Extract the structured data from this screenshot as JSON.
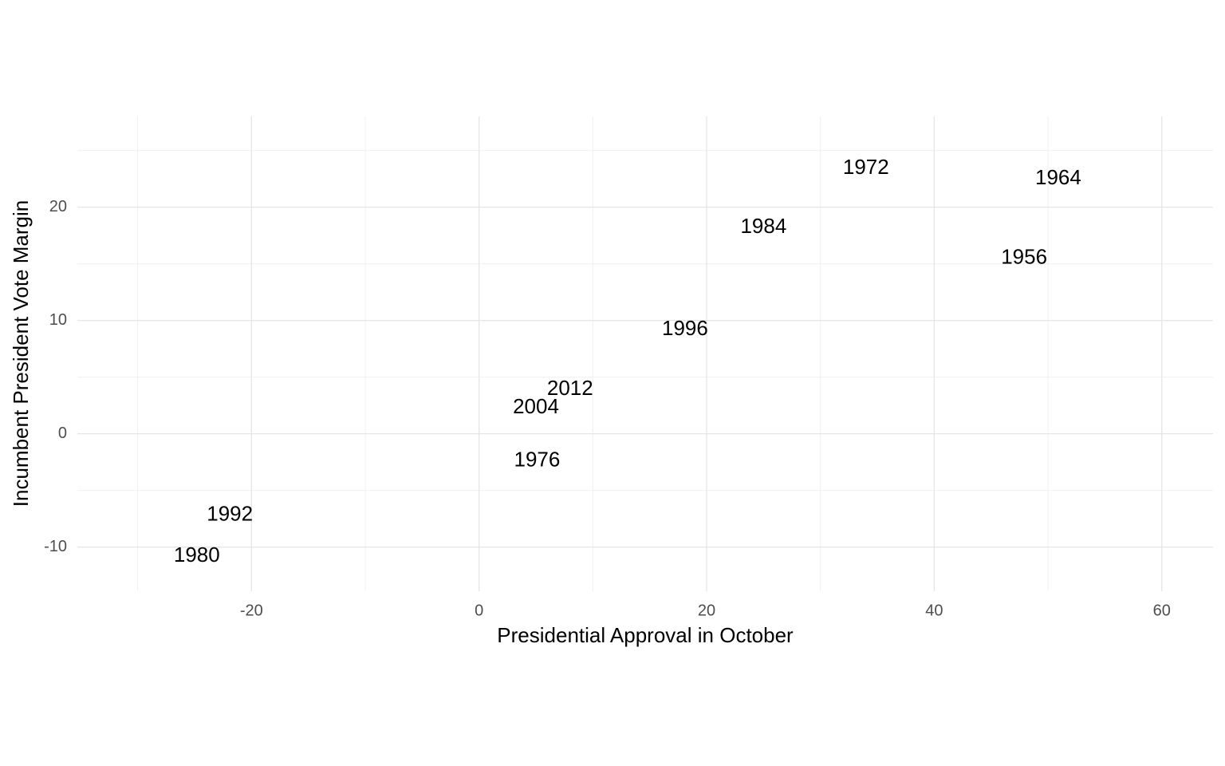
{
  "chart_data": {
    "type": "scatter",
    "x_label": "Presidential Approval in October",
    "y_label": "Incumbent President Vote Margin",
    "labels": [
      "1972",
      "1964",
      "1984",
      "1956",
      "1996",
      "2012",
      "2004",
      "1976",
      "1992",
      "1980"
    ],
    "x": [
      34.0,
      50.9,
      25.0,
      47.9,
      18.1,
      8.0,
      5.0,
      5.1,
      -21.9,
      -24.8
    ],
    "values": [
      23.4,
      22.5,
      18.2,
      15.5,
      9.2,
      3.9,
      2.3,
      -2.4,
      -7.2,
      -10.8
    ],
    "color": "#000000",
    "xlim": [
      -35.3,
      64.5
    ],
    "xticks": [
      -20,
      0,
      20,
      40,
      60
    ],
    "ylim": [
      -13.9,
      28
    ],
    "yticks": [
      -10,
      0,
      10,
      20
    ],
    "grid": true
  }
}
